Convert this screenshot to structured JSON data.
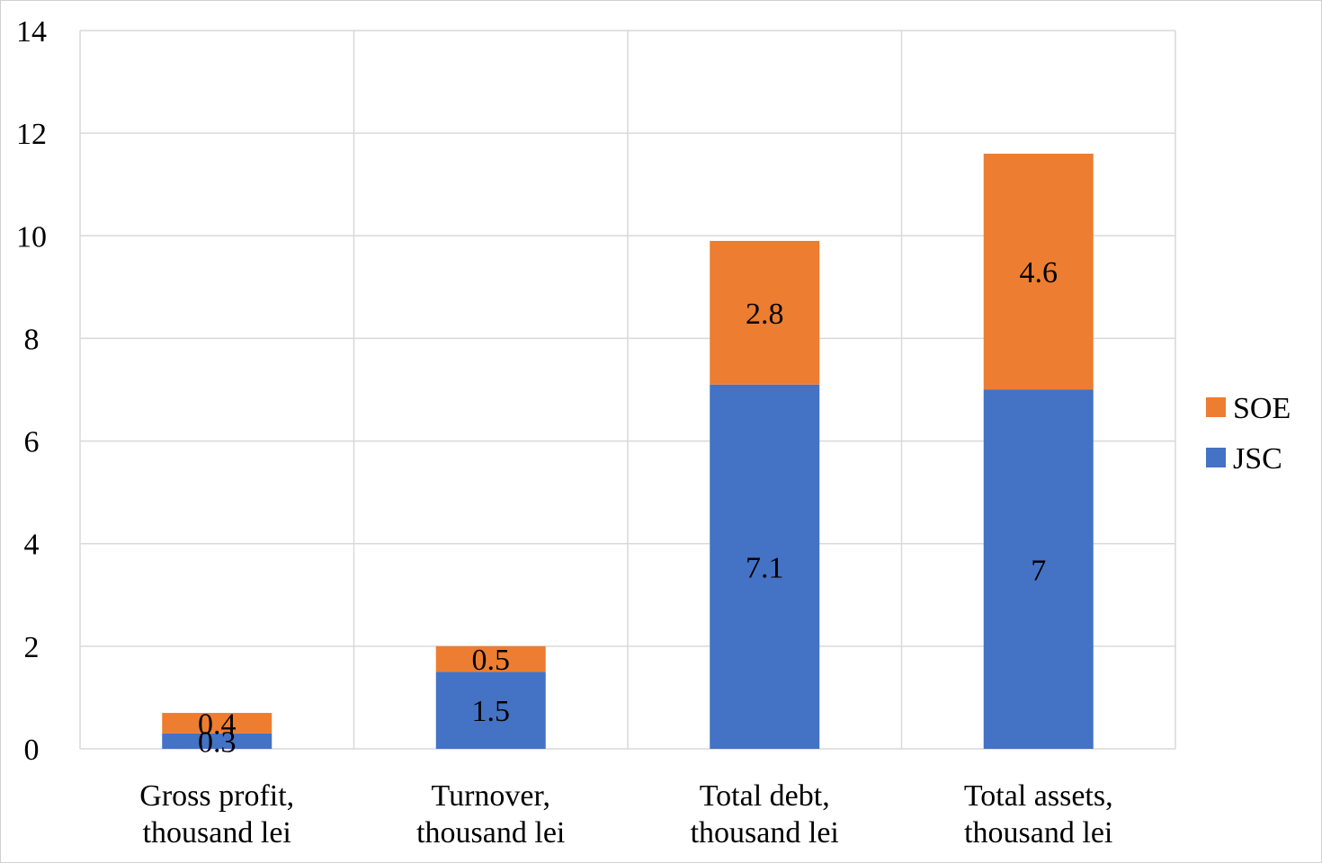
{
  "chart_data": {
    "type": "bar",
    "stacked": true,
    "categories": [
      [
        "Gross profit,",
        "thousand lei"
      ],
      [
        "Turnover,",
        "thousand lei"
      ],
      [
        "Total debt,",
        "thousand lei"
      ],
      [
        "Total assets,",
        "thousand lei"
      ]
    ],
    "series": [
      {
        "name": "JSC",
        "color": "#4472c4",
        "values": [
          0.3,
          1.5,
          7.1,
          7
        ],
        "labels": [
          "0.3",
          "1.5",
          "7.1",
          "7"
        ]
      },
      {
        "name": "SOE",
        "color": "#ed7d31",
        "values": [
          0.4,
          0.5,
          2.8,
          4.6
        ],
        "labels": [
          "0.4",
          "0.5",
          "2.8",
          "4.6"
        ]
      }
    ],
    "ylim": [
      0,
      14
    ],
    "yticks": [
      0,
      2,
      4,
      6,
      8,
      10,
      12,
      14
    ],
    "grid": true,
    "legend_position": "right",
    "legend_order": [
      "SOE",
      "JSC"
    ]
  }
}
